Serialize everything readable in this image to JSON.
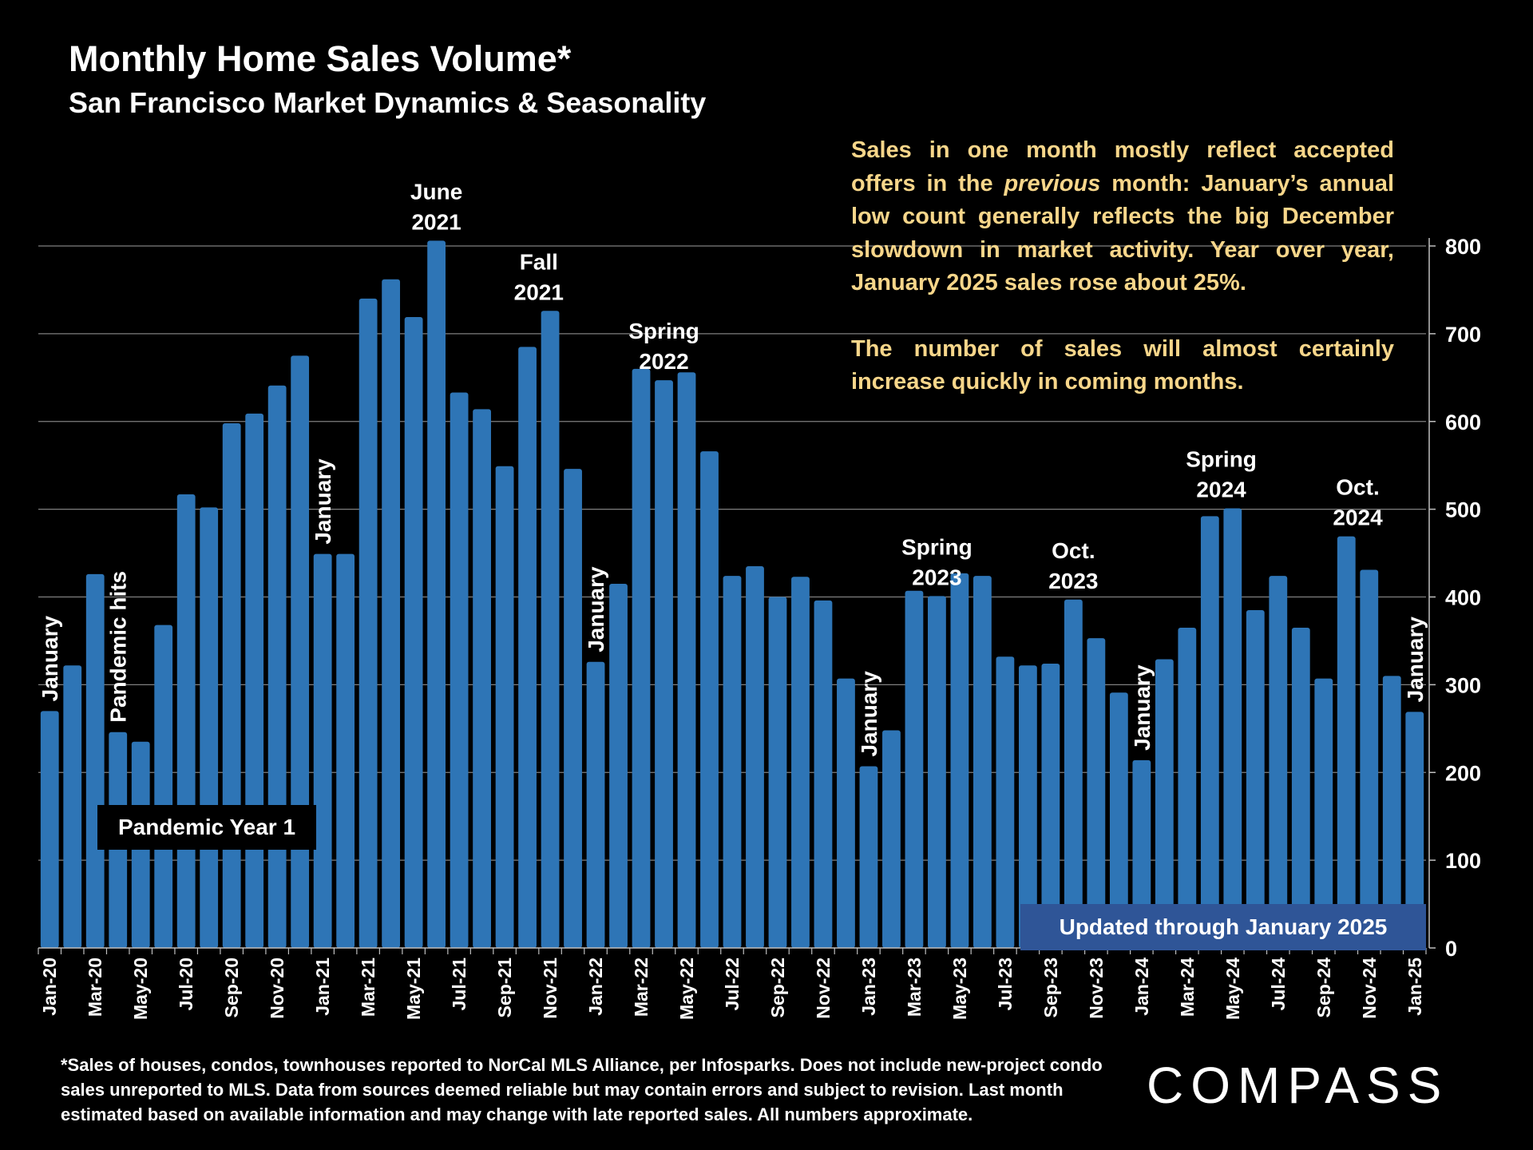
{
  "chart_data": {
    "type": "bar",
    "title": "Monthly Home Sales Volume*",
    "subtitle": "San Francisco Market Dynamics & Seasonality",
    "ylim": [
      0,
      800
    ],
    "yticks": [
      0,
      100,
      200,
      300,
      400,
      500,
      600,
      700,
      800
    ],
    "y_axis_side": "right",
    "grid": true,
    "categories": [
      "Jan-20",
      "Feb-20",
      "Mar-20",
      "Apr-20",
      "May-20",
      "Jun-20",
      "Jul-20",
      "Aug-20",
      "Sep-20",
      "Oct-20",
      "Nov-20",
      "Dec-20",
      "Jan-21",
      "Feb-21",
      "Mar-21",
      "Apr-21",
      "May-21",
      "Jun-21",
      "Jul-21",
      "Aug-21",
      "Sep-21",
      "Oct-21",
      "Nov-21",
      "Dec-21",
      "Jan-22",
      "Feb-22",
      "Mar-22",
      "Apr-22",
      "May-22",
      "Jun-22",
      "Jul-22",
      "Aug-22",
      "Sep-22",
      "Oct-22",
      "Nov-22",
      "Dec-22",
      "Jan-23",
      "Feb-23",
      "Mar-23",
      "Apr-23",
      "May-23",
      "Jun-23",
      "Jul-23",
      "Aug-23",
      "Sep-23",
      "Oct-23",
      "Nov-23",
      "Dec-23",
      "Jan-24",
      "Feb-24",
      "Mar-24",
      "Apr-24",
      "May-24",
      "Jun-24",
      "Jul-24",
      "Aug-24",
      "Sep-24",
      "Oct-24",
      "Nov-24",
      "Dec-24",
      "Jan-25"
    ],
    "values": [
      270,
      322,
      426,
      246,
      235,
      368,
      517,
      502,
      598,
      609,
      641,
      675,
      449,
      449,
      740,
      762,
      719,
      806,
      633,
      614,
      549,
      685,
      726,
      546,
      326,
      415,
      660,
      647,
      656,
      566,
      424,
      435,
      400,
      423,
      396,
      307,
      207,
      248,
      407,
      401,
      427,
      424,
      332,
      322,
      324,
      397,
      353,
      291,
      214,
      329,
      365,
      492,
      501,
      385,
      424,
      365,
      307,
      469,
      431,
      310,
      269
    ],
    "xtick_labels": [
      "Jan-20",
      "Mar-20",
      "May-20",
      "Jul-20",
      "Sep-20",
      "Nov-20",
      "Jan-21",
      "Mar-21",
      "May-21",
      "Jul-21",
      "Sep-21",
      "Nov-21",
      "Jan-22",
      "Mar-22",
      "May-22",
      "Jul-22",
      "Sep-22",
      "Nov-22",
      "Jan-23",
      "Mar-23",
      "May-23",
      "Jul-23",
      "Sep-23",
      "Nov-23",
      "Jan-24",
      "Mar-24",
      "May-24",
      "Jul-24",
      "Sep-24",
      "Nov-24",
      "Jan-25"
    ],
    "annotations": [
      {
        "lines": [
          "January"
        ],
        "index": 0,
        "vertical": true
      },
      {
        "lines": [
          "Pandemic hits"
        ],
        "index": 3,
        "vertical": true
      },
      {
        "lines": [
          "January"
        ],
        "index": 12,
        "vertical": true
      },
      {
        "lines": [
          "June",
          "2021"
        ],
        "index": 17,
        "vertical": false
      },
      {
        "lines": [
          "Fall",
          "2021"
        ],
        "index": 21.5,
        "vertical": false
      },
      {
        "lines": [
          "January"
        ],
        "index": 24,
        "vertical": true
      },
      {
        "lines": [
          "Spring",
          "2022"
        ],
        "index": 27,
        "vertical": false
      },
      {
        "lines": [
          "January"
        ],
        "index": 36,
        "vertical": true
      },
      {
        "lines": [
          "Spring",
          "2023"
        ],
        "index": 39,
        "vertical": false
      },
      {
        "lines": [
          "Oct.",
          "2023"
        ],
        "index": 45,
        "vertical": false
      },
      {
        "lines": [
          "January"
        ],
        "index": 48,
        "vertical": true
      },
      {
        "lines": [
          "Spring",
          "2024"
        ],
        "index": 51.5,
        "vertical": false
      },
      {
        "lines": [
          "Oct.",
          "2024"
        ],
        "index": 57.5,
        "vertical": false
      },
      {
        "lines": [
          "January"
        ],
        "index": 60,
        "vertical": true
      }
    ],
    "bar_color": "#2e75b6"
  },
  "note": {
    "p1_before": "Sales in one month mostly reflect accepted offers in the ",
    "p1_italic": "previous",
    "p1_after": " month:  January’s annual low count generally reflects the big December slowdown in market activity. Year over year, January 2025 sales rose about 25%.",
    "p2": "The number of sales will almost certainly increase quickly in coming months.",
    "color": "#f7d68a"
  },
  "pandemic_box": "Pandemic Year 1",
  "updated_box": "Updated through January 2025",
  "footnote": "*Sales of houses, condos, townhouses reported to NorCal MLS Alliance, per Infosparks. Does not include new-project condo sales unreported to MLS. Data from sources deemed reliable but may contain errors and subject to revision. Last month estimated based on available information and may change with late reported sales. All numbers approximate.",
  "logo": "COMPASS"
}
